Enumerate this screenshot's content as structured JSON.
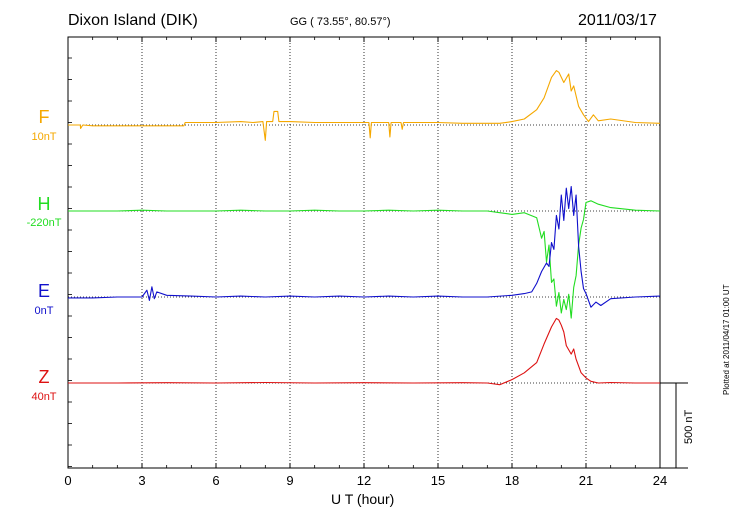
{
  "header": {
    "station": "Dixon Island (DIK)",
    "coords": "GG ( 73.55°,  80.57°)",
    "date": "2011/03/17",
    "plotted": "Plotted at 2011/04/17 01:00 UT"
  },
  "colors": {
    "F": "#f5a800",
    "H": "#22dd22",
    "E": "#1010cc",
    "Z": "#dd1111"
  },
  "chart_data": {
    "type": "line",
    "xlabel": "U T (hour)",
    "xlim": [
      0,
      24
    ],
    "xticks": [
      "0",
      "3",
      "6",
      "9",
      "12",
      "15",
      "18",
      "21",
      "24"
    ],
    "grid": true,
    "scale_bar": "500 nT",
    "series": [
      {
        "name": "F",
        "baseline": "10nT",
        "x": [
          0,
          0.5,
          0.51,
          0.6,
          1,
          2,
          3,
          4,
          4.7,
          4.75,
          5.5,
          6,
          7,
          7.5,
          7.9,
          8.0,
          8.05,
          8.1,
          8.3,
          8.35,
          8.5,
          8.55,
          8.7,
          9,
          10,
          11,
          12,
          12.2,
          12.25,
          12.3,
          12.8,
          13.0,
          13.05,
          13.1,
          13.5,
          13.55,
          13.6,
          14,
          15,
          16,
          17,
          17.5,
          18,
          18.5,
          19,
          19.3,
          19.6,
          19.8,
          19.9,
          20.1,
          20.3,
          20.4,
          20.5,
          20.7,
          20.9,
          21.1,
          21.3,
          21.5,
          22,
          23,
          24
        ],
        "values": [
          0,
          0,
          -20,
          0,
          -5,
          -5,
          -5,
          -5,
          -5,
          15,
          15,
          15,
          20,
          15,
          20,
          -90,
          20,
          20,
          20,
          80,
          80,
          20,
          20,
          20,
          15,
          15,
          15,
          15,
          -75,
          15,
          15,
          15,
          -70,
          15,
          15,
          -25,
          15,
          15,
          15,
          10,
          10,
          10,
          20,
          35,
          90,
          160,
          280,
          320,
          310,
          250,
          300,
          200,
          230,
          110,
          60,
          20,
          60,
          25,
          35,
          15,
          10
        ]
      },
      {
        "name": "H",
        "baseline": "-220nT",
        "x": [
          0,
          1,
          2,
          3,
          4,
          5,
          6,
          7,
          8,
          9,
          10,
          11,
          12,
          13,
          14,
          15,
          16,
          17,
          17.5,
          18,
          18.5,
          19.0,
          19.2,
          19.3,
          19.4,
          19.5,
          19.6,
          19.7,
          19.8,
          19.9,
          20.0,
          20.1,
          20.2,
          20.3,
          20.4,
          20.5,
          20.6,
          20.7,
          20.8,
          20.9,
          21.0,
          21.2,
          21.5,
          22,
          23,
          24
        ],
        "values": [
          0,
          0,
          0,
          5,
          0,
          0,
          0,
          5,
          0,
          0,
          5,
          0,
          0,
          5,
          0,
          5,
          0,
          0,
          -10,
          -20,
          -10,
          -40,
          -160,
          -120,
          -300,
          -200,
          -420,
          -400,
          -560,
          -480,
          -600,
          -520,
          -580,
          -490,
          -630,
          -450,
          -380,
          -200,
          -100,
          -50,
          50,
          60,
          40,
          20,
          5,
          0
        ]
      },
      {
        "name": "E",
        "baseline": "0nT",
        "x": [
          0,
          1,
          2,
          3,
          3.2,
          3.3,
          3.4,
          3.5,
          3.6,
          4,
          5,
          6,
          7,
          8,
          9,
          10,
          11,
          12,
          13,
          14,
          15,
          16,
          17,
          18,
          18.5,
          18.8,
          19.0,
          19.2,
          19.4,
          19.5,
          19.6,
          19.7,
          19.8,
          19.9,
          20.0,
          20.1,
          20.2,
          20.3,
          20.4,
          20.5,
          20.6,
          20.7,
          20.8,
          20.9,
          21.0,
          21.2,
          21.4,
          21.6,
          22,
          23,
          24
        ],
        "values": [
          -5,
          -5,
          0,
          0,
          40,
          -20,
          60,
          -10,
          30,
          10,
          5,
          0,
          5,
          0,
          5,
          0,
          5,
          0,
          5,
          0,
          5,
          0,
          0,
          10,
          20,
          30,
          80,
          150,
          200,
          180,
          320,
          280,
          480,
          400,
          600,
          450,
          640,
          520,
          650,
          480,
          600,
          300,
          150,
          50,
          20,
          -60,
          -30,
          -50,
          -10,
          0,
          5
        ]
      },
      {
        "name": "Z",
        "baseline": "40nT",
        "x": [
          0,
          2,
          4,
          6,
          8,
          10,
          12,
          14,
          16,
          17,
          17.5,
          18,
          18.5,
          19.0,
          19.3,
          19.6,
          19.8,
          19.9,
          20.0,
          20.1,
          20.2,
          20.4,
          20.5,
          20.6,
          20.8,
          21.0,
          21.2,
          21.5,
          22,
          23,
          24
        ],
        "values": [
          0,
          0,
          2,
          0,
          3,
          0,
          2,
          0,
          2,
          0,
          -10,
          20,
          60,
          120,
          230,
          330,
          380,
          370,
          340,
          300,
          220,
          170,
          200,
          140,
          60,
          30,
          10,
          0,
          3,
          0,
          0
        ]
      }
    ]
  }
}
